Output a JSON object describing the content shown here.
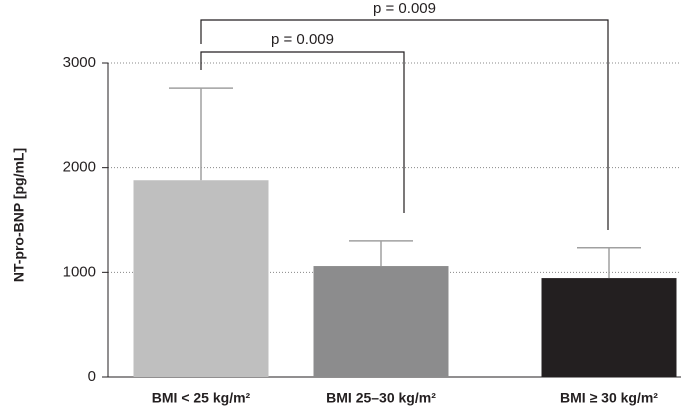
{
  "chart_data": {
    "type": "bar",
    "y_label": "NT-pro-BNP [pg/mL]",
    "categories": [
      "BMI < 25 kg/m²",
      "BMI  25–30 kg/m²",
      "BMI ≥ 30 kg/m²"
    ],
    "values": [
      1880,
      1060,
      945
    ],
    "errors": [
      880,
      240,
      290
    ],
    "colors": [
      "#bfbfbf",
      "#8c8c8d",
      "#231f20"
    ],
    "error_color": "#a0a0a0",
    "ylim": [
      0,
      3000
    ],
    "yticks": [
      0,
      1000,
      2000,
      3000
    ],
    "grid": true,
    "annotations": [
      "p = 0.009",
      "p = 0.009"
    ]
  }
}
